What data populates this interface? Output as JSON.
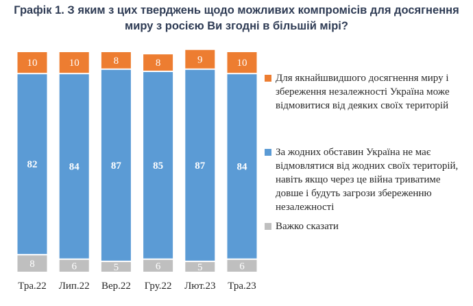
{
  "chart_data": {
    "type": "bar",
    "stacked": "100%",
    "title": "Графік 1. З яким з цих тверджень щодо можливих компромісів для досягнення миру з росією Ви згодні в більшій мірі?",
    "categories": [
      "Тра.22",
      "Лип.22",
      "Вер.22",
      "Гру.22",
      "Лют.23",
      "Тра.23"
    ],
    "series": [
      {
        "name": "Важко сказати",
        "color": "#bfbfbf",
        "values": [
          8,
          6,
          5,
          6,
          5,
          6
        ]
      },
      {
        "name": "За жодних обставин Україна не має відмовлятися від жодних своїх територій, навіть якщо через це війна триватиме довше і будуть загрози збереженню незалежності",
        "color": "#5b9bd5",
        "values": [
          82,
          84,
          87,
          85,
          87,
          84
        ]
      },
      {
        "name": "Для якнайшвидшого досягнення миру і збереження незалежності Україна може відмовитися від деяких своїх територій",
        "color": "#ed7d31",
        "values": [
          10,
          10,
          8,
          8,
          9,
          10
        ]
      }
    ],
    "legend_order": [
      2,
      1,
      0
    ],
    "legend": "right",
    "grid": false,
    "ylim": [
      0,
      100
    ]
  }
}
